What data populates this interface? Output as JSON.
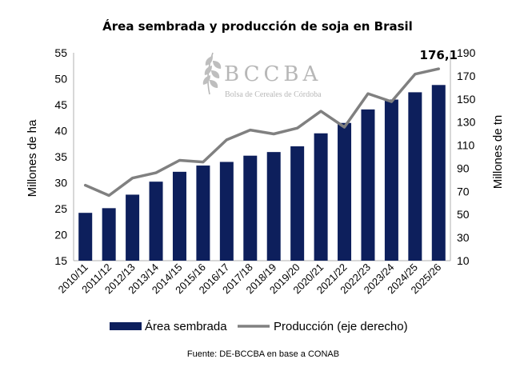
{
  "chart_data": {
    "type": "bar+line",
    "title": "Área sembrada y producción de soja en Brasil",
    "ylabel_left": "Millones de ha",
    "ylabel_right": "Millones de tn",
    "ylim_left": [
      15,
      55
    ],
    "yticks_left": [
      15,
      20,
      25,
      30,
      35,
      40,
      45,
      50,
      55
    ],
    "ylim_right": [
      10,
      190
    ],
    "yticks_right": [
      10,
      30,
      50,
      70,
      90,
      110,
      130,
      150,
      170,
      190
    ],
    "categories": [
      "2010/11",
      "2011/12",
      "2012/13",
      "2013/14",
      "2014/15",
      "2015/16",
      "2016/17",
      "2017/18",
      "2018/19",
      "2019/20",
      "2020/21",
      "2021/22",
      "2022/23",
      "2023/24",
      "2024/25",
      "2025/26"
    ],
    "series": [
      {
        "name": "Área sembrada",
        "type": "bar",
        "axis": "left",
        "color": "#0d1f5c",
        "values": [
          24.2,
          25.1,
          27.7,
          30.2,
          32.1,
          33.3,
          34.0,
          35.2,
          35.9,
          37.0,
          39.5,
          41.5,
          44.1,
          46.0,
          47.4,
          48.8
        ]
      },
      {
        "name": "Producción (eje derecho)",
        "type": "line",
        "axis": "right",
        "color": "#808080",
        "values": [
          75.3,
          66.4,
          81.5,
          86.1,
          96.9,
          95.4,
          114.6,
          123.1,
          119.7,
          124.8,
          139.4,
          125.6,
          154.6,
          147.7,
          171.5,
          176.1
        ]
      }
    ],
    "annotations": [
      {
        "text": "176,1",
        "category": "2025/26",
        "series": "Producción (eje derecho)"
      }
    ],
    "legend_position": "bottom",
    "grid": false
  },
  "watermark": {
    "name": "BCCBA",
    "subtitle": "Bolsa de Cereales de Córdoba",
    "icon": "wheat-icon"
  },
  "source": "Fuente: DE-BCCBA en base a CONAB"
}
